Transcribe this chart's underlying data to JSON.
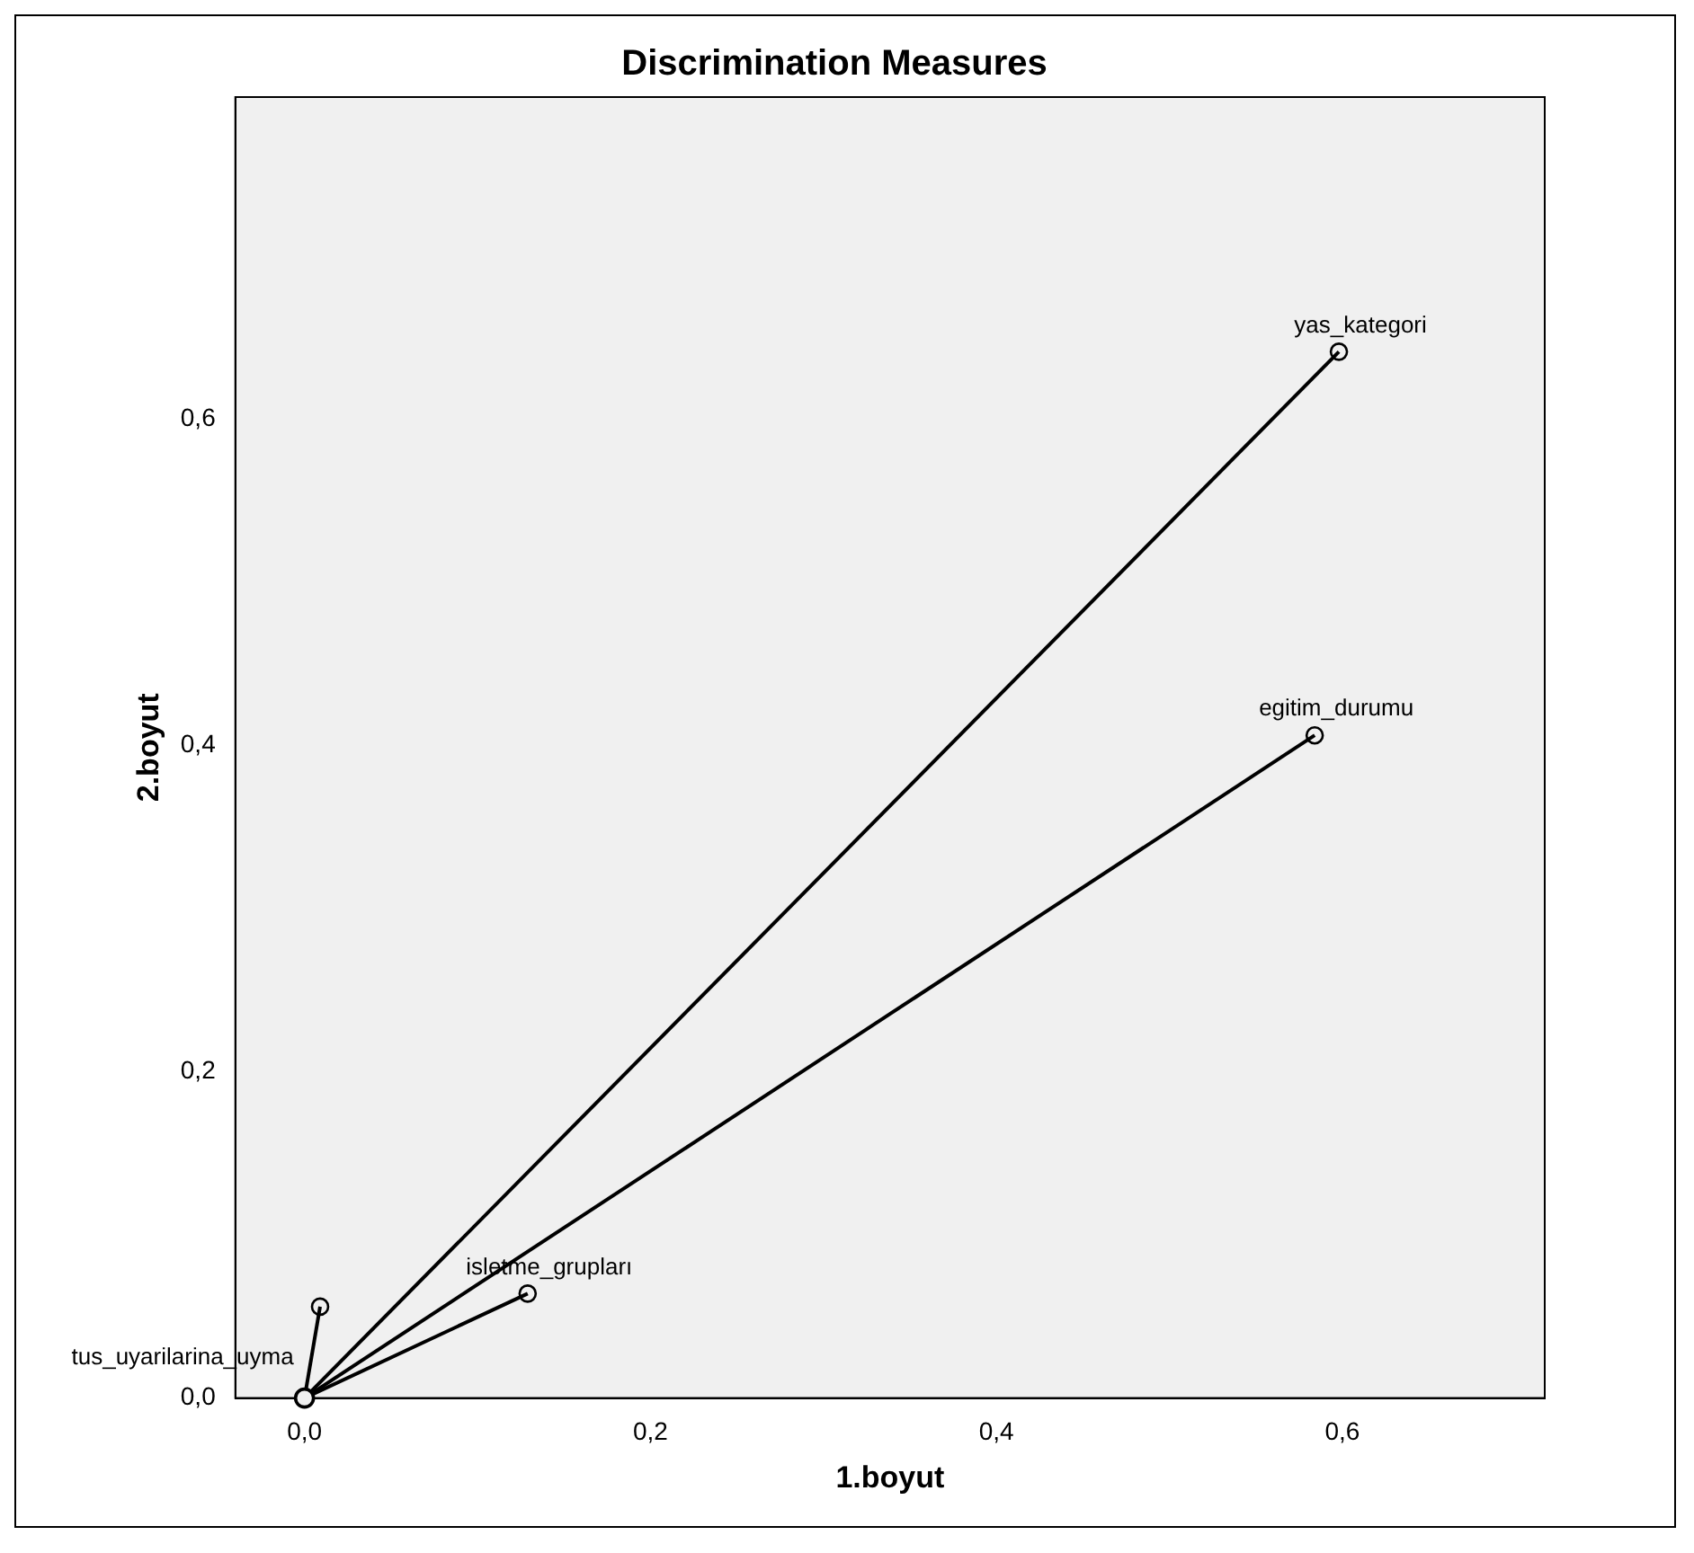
{
  "chart_data": {
    "type": "line",
    "title": "Discrimination Measures",
    "xlabel": "1.boyut",
    "ylabel": "2.boyut",
    "xlim": [
      -0.04,
      0.717
    ],
    "ylim": [
      0,
      0.797
    ],
    "xticks": [
      {
        "value": 0,
        "label": "0,0"
      },
      {
        "value": 0.2,
        "label": "0,2"
      },
      {
        "value": 0.4,
        "label": "0,4"
      },
      {
        "value": 0.6,
        "label": "0,6"
      }
    ],
    "yticks": [
      {
        "value": 0,
        "label": "0,0"
      },
      {
        "value": 0.2,
        "label": "0,2"
      },
      {
        "value": 0.4,
        "label": "0,4"
      },
      {
        "value": 0.6,
        "label": "0,6"
      }
    ],
    "grid": false,
    "legend": false,
    "marker": "circle",
    "line_style": "solid",
    "series": [
      {
        "name": "yas_kategori",
        "color": "#000000",
        "x": [
          0,
          0.598
        ],
        "values": [
          0,
          0.641
        ]
      },
      {
        "name": "egitim_durumu",
        "color": "#000000",
        "x": [
          0,
          0.584
        ],
        "values": [
          0,
          0.406
        ]
      },
      {
        "name": "isletme_grupları",
        "color": "#000000",
        "x": [
          0,
          0.129
        ],
        "values": [
          0,
          0.064
        ]
      },
      {
        "color": "#000000",
        "x": [
          0,
          0.009
        ],
        "values": [
          0,
          0.056
        ]
      },
      {
        "name": "tus_uyarilarina_uyma",
        "type": "scatter",
        "color": "#000000",
        "x": [
          0
        ],
        "values": [
          0
        ]
      }
    ]
  }
}
